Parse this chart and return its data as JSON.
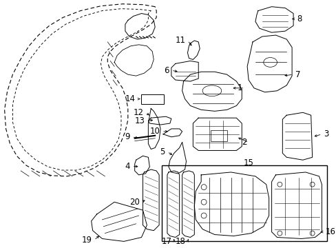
{
  "background_color": "#ffffff",
  "line_color": "#000000",
  "label_fontsize": 8.5,
  "arrow_lw": 0.6,
  "part_lw": 0.7
}
